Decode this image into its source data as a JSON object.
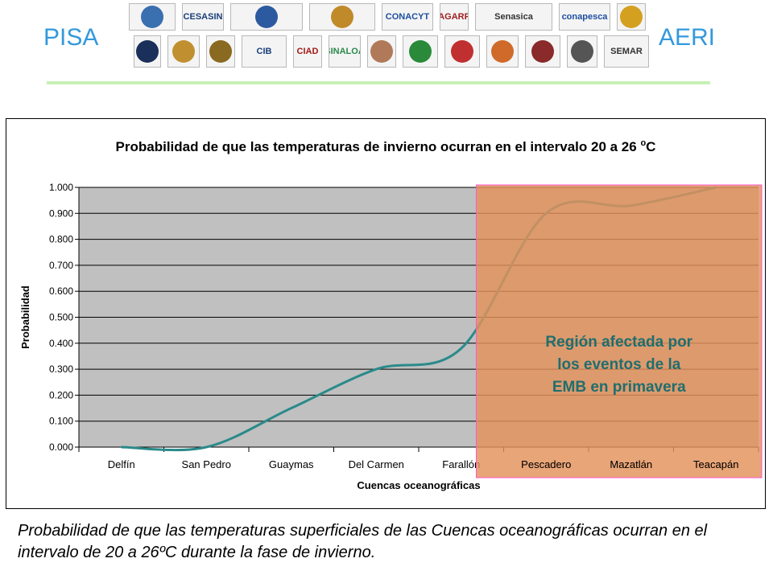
{
  "header": {
    "left_label": "PISA",
    "right_label": "AERI",
    "logos_row1": [
      {
        "name": "logo-circle",
        "text": "",
        "color": "#3a6fb0"
      },
      {
        "name": "logo-cesasin",
        "text": "CESASIN",
        "color": "#1a3f7a"
      },
      {
        "name": "logo-comite-nayarit",
        "text": "",
        "color": "#2c5aa0"
      },
      {
        "name": "logo-comite-bcs",
        "text": "",
        "color": "#c08a2a"
      },
      {
        "name": "logo-conacyt",
        "text": "CONACYT",
        "color": "#1e4fa0"
      },
      {
        "name": "logo-sagarpa",
        "text": "SAGARPA",
        "color": "#a02020"
      },
      {
        "name": "logo-senasica",
        "text": "Senasica",
        "color": "#333333"
      },
      {
        "name": "logo-conapesca",
        "text": "conapesca",
        "color": "#1e4fa0"
      },
      {
        "name": "logo-shield",
        "text": "",
        "color": "#d4a020"
      }
    ],
    "logos_row2": [
      {
        "name": "logo-unam",
        "text": "",
        "color": "#1a2f5a"
      },
      {
        "name": "logo-emblem",
        "text": "",
        "color": "#c09030"
      },
      {
        "name": "logo-coat-of-arms",
        "text": "",
        "color": "#8a6a20"
      },
      {
        "name": "logo-cib",
        "text": "CIB",
        "color": "#1a3f7a"
      },
      {
        "name": "logo-ciad",
        "text": "CIAD",
        "color": "#a01818"
      },
      {
        "name": "logo-sinaloa",
        "text": "SINALOA",
        "color": "#2a8a4a"
      },
      {
        "name": "logo-figure",
        "text": "",
        "color": "#b07a5a"
      },
      {
        "name": "logo-seal-green",
        "text": "",
        "color": "#2a8a3a"
      },
      {
        "name": "logo-seal-red",
        "text": "",
        "color": "#c03030"
      },
      {
        "name": "logo-seal-orange",
        "text": "",
        "color": "#d06a2a"
      },
      {
        "name": "logo-seal-star",
        "text": "",
        "color": "#8a2a2a"
      },
      {
        "name": "logo-red-diagnostico",
        "text": "",
        "color": "#555555"
      },
      {
        "name": "logo-semar",
        "text": "SEMAR",
        "color": "#333333"
      }
    ]
  },
  "chart_data": {
    "type": "line",
    "title": "Probabilidad de que las temperaturas de invierno ocurran en el intervalo 20 a 26 °C",
    "title_main": "Probabilidad de que las temperaturas de invierno ocurran en el intervalo 20 a 26 ",
    "title_degree": "o",
    "title_unit": "C",
    "xlabel": "Cuencas oceanográficas",
    "ylabel": "Probabilidad",
    "categories": [
      "Delfín",
      "San Pedro",
      "Guaymas",
      "Del Carmen",
      "Farallón",
      "Pescadero",
      "Mazatlán",
      "Teacapán"
    ],
    "series": [
      {
        "values": [
          0.0,
          0.0,
          0.15,
          0.3,
          0.38,
          0.9,
          0.93,
          1.0
        ],
        "color": "#2a8a8a"
      }
    ],
    "ylim": [
      0,
      1
    ],
    "yticks": [
      "0.000",
      "0.100",
      "0.200",
      "0.300",
      "0.400",
      "0.500",
      "0.600",
      "0.700",
      "0.800",
      "0.900",
      "1.000"
    ],
    "grid": true,
    "plot_bg": "#c0c0c0",
    "highlight": {
      "label_lines": [
        "Región afectada por",
        "los eventos de la",
        "EMB en primavera"
      ],
      "from_category": "Pescadero",
      "to_category": "Teacapán",
      "fill": "#e3915a",
      "border": "#ff55cc",
      "text_color": "#1f6e6e"
    }
  },
  "caption": "Probabilidad de que las temperaturas superficiales de las Cuencas oceanográficas ocurran en el intervalo de 20 a 26ºC durante la fase de invierno."
}
